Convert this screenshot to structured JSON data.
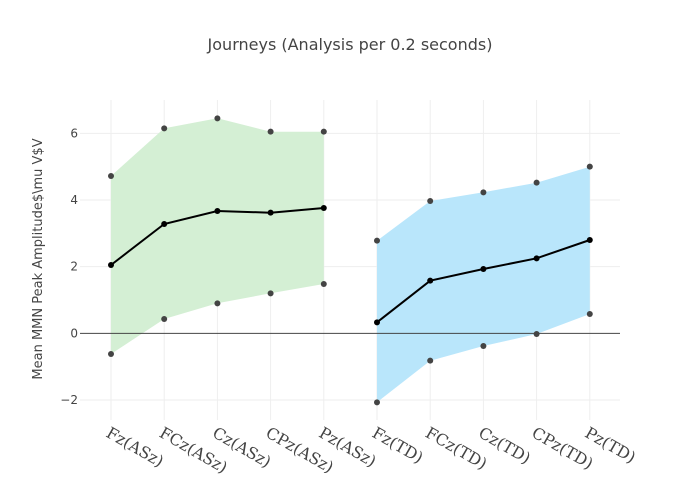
{
  "chart_data": {
    "type": "line",
    "title": "Journeys (Analysis per 0.2 seconds)",
    "xlabel": "",
    "ylabel": "Mean MMN Peak Amplitude$\\mu V$V",
    "ylim": [
      -2.6,
      7.0
    ],
    "yticks": [
      -2,
      0,
      2,
      4,
      6
    ],
    "ytick_labels": [
      "−2",
      "0",
      "2",
      "4",
      "6"
    ],
    "grid": true,
    "legend": "none",
    "categories": [
      "Fz(ASz)",
      "FCz(ASz)",
      "Cz(ASz)",
      "CPz(ASz)",
      "Pz(ASz)",
      "Fz(TD)",
      "FCz(TD)",
      "Cz(TD)",
      "CPz(TD)",
      "Pz(TD)"
    ],
    "groups": [
      {
        "categories": [
          "Fz(ASz)",
          "FCz(ASz)",
          "Cz(ASz)",
          "CPz(ASz)",
          "Pz(ASz)"
        ],
        "mean": [
          2.05,
          3.28,
          3.67,
          3.62,
          3.76
        ],
        "upper": [
          4.72,
          6.15,
          6.45,
          6.05,
          6.05
        ],
        "lower": [
          -0.62,
          0.43,
          0.9,
          1.2,
          1.48
        ],
        "fill_color": "#d4efd4"
      },
      {
        "categories": [
          "Fz(TD)",
          "FCz(TD)",
          "Cz(TD)",
          "CPz(TD)",
          "Pz(TD)"
        ],
        "mean": [
          0.33,
          1.58,
          1.93,
          2.25,
          2.8
        ],
        "upper": [
          2.78,
          3.97,
          4.23,
          4.52,
          5.0
        ],
        "lower": [
          -2.07,
          -0.82,
          -0.38,
          -0.02,
          0.58
        ],
        "fill_color": "#b9e6fb"
      }
    ],
    "line_color": "#000000",
    "marker_color": "#444444"
  }
}
